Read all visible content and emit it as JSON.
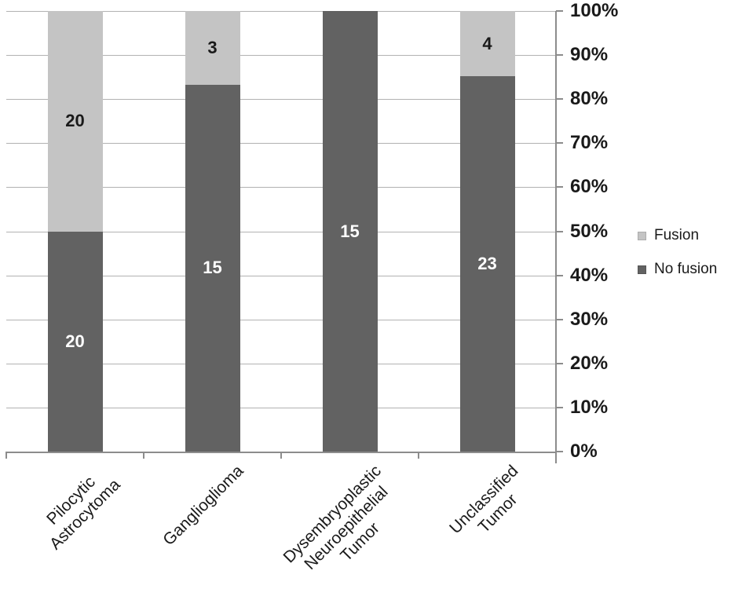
{
  "chart_data": {
    "type": "bar",
    "subtype": "100-percent-stacked-column",
    "title": "",
    "xlabel": "",
    "ylabel": "",
    "categories": [
      "Pilocytic Astrocytoma",
      "Ganglioglioma",
      "Dysembryoplastic Neuroepithelial Tumor",
      "Unclassified Tumor"
    ],
    "category_label_lines": [
      [
        "Pilocytic",
        "Astrocytoma"
      ],
      [
        "Ganglioglioma"
      ],
      [
        "Dysembryoplastic",
        "Neuroepithelial",
        "Tumor"
      ],
      [
        "Unclassified",
        "Tumor"
      ]
    ],
    "series": [
      {
        "name": "Fusion",
        "values": [
          20,
          3,
          0,
          4
        ],
        "color": "#c4c4c4",
        "label_color": "#1a1a1a"
      },
      {
        "name": "No fusion",
        "values": [
          20,
          15,
          15,
          23
        ],
        "color": "#626262",
        "label_color": "#ffffff"
      }
    ],
    "stack_order_top_to_bottom": [
      "Fusion",
      "No fusion"
    ],
    "computed_percentages": {
      "Fusion": [
        50.0,
        16.7,
        0.0,
        14.8
      ],
      "No fusion": [
        50.0,
        83.3,
        100.0,
        85.2
      ]
    },
    "y_ticks": [
      "100%",
      "90%",
      "80%",
      "70%",
      "60%",
      "50%",
      "40%",
      "30%",
      "20%",
      "10%",
      "0%"
    ],
    "ylim": [
      0,
      100
    ],
    "y_unit": "percent",
    "grid": true,
    "legend": {
      "position": "right",
      "items": [
        "Fusion",
        "No fusion"
      ]
    },
    "colors": {
      "background": "#ffffff",
      "gridline": "#b2b2b2",
      "axis": "#8c8c8c",
      "text": "#1a1a1a",
      "fusion": "#c4c4c4",
      "no_fusion": "#626262"
    }
  }
}
